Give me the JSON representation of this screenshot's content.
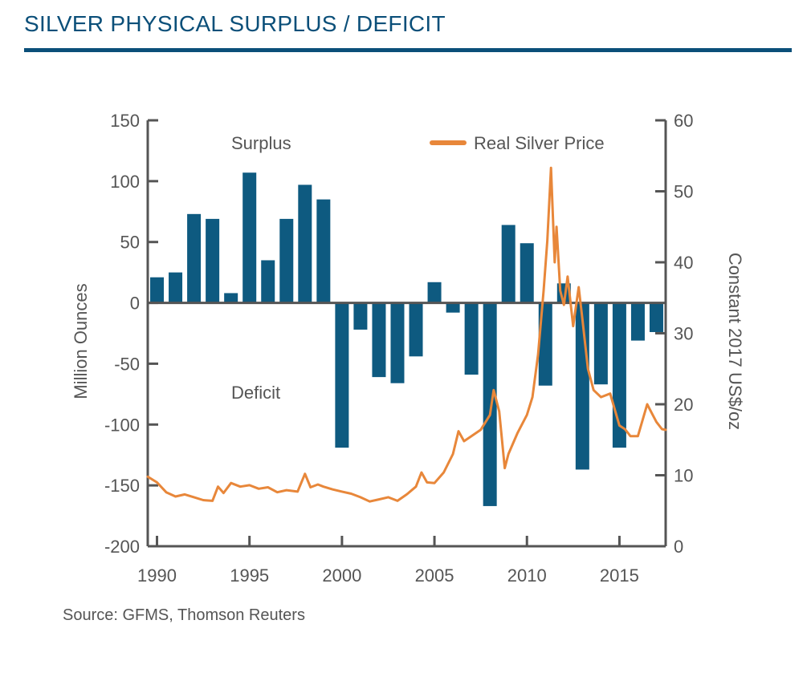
{
  "title": "SILVER PHYSICAL SURPLUS / DEFICIT",
  "source": "Source: GFMS, Thomson Reuters",
  "colors": {
    "title": "#0b4f79",
    "bars": "#0e5a80",
    "price_line": "#e8873a",
    "axis": "#555555",
    "text": "#555555"
  },
  "chart_data": {
    "type": "bar+line",
    "annotations": [
      "Surplus",
      "Deficit"
    ],
    "legend": {
      "label": "Real Silver Price",
      "placement": "top-right"
    },
    "grid": false,
    "x_axis": {
      "range": [
        1989.5,
        2017.5
      ],
      "ticks": [
        1990,
        1995,
        2000,
        2005,
        2010,
        2015
      ],
      "tick_labels": [
        "1990",
        "1995",
        "2000",
        "2005",
        "2010",
        "2015"
      ]
    },
    "y_left": {
      "label": "Million Ounces",
      "range": [
        -200,
        150
      ],
      "ticks": [
        150,
        100,
        50,
        0,
        -50,
        -100,
        -150,
        -200
      ],
      "tick_labels": [
        "150",
        "100",
        "50",
        "0",
        "-50",
        "-100",
        "-150",
        "-200"
      ]
    },
    "y_right": {
      "label": "Constant 2017 US$/oz",
      "range": [
        0,
        60
      ],
      "ticks": [
        60,
        50,
        40,
        30,
        20,
        10,
        0
      ],
      "tick_labels": [
        "60",
        "50",
        "40",
        "30",
        "20",
        "10",
        "0"
      ]
    },
    "bars": {
      "name": "Physical surplus / deficit",
      "years": [
        1990,
        1991,
        1992,
        1993,
        1994,
        1995,
        1996,
        1997,
        1998,
        1999,
        2000,
        2001,
        2002,
        2003,
        2004,
        2005,
        2006,
        2007,
        2008,
        2009,
        2010,
        2011,
        2012,
        2013,
        2014,
        2015,
        2016,
        2017
      ],
      "values": [
        21,
        25,
        73,
        69,
        8,
        107,
        35,
        69,
        97,
        85,
        -119,
        -22,
        -61,
        -66,
        -44,
        17,
        -8,
        -59,
        -167,
        64,
        49,
        -68,
        16,
        -137,
        -67,
        -119,
        -31,
        -24
      ]
    },
    "line": {
      "name": "Real Silver Price",
      "points": [
        [
          1989.5,
          9.8
        ],
        [
          1990.0,
          9.0
        ],
        [
          1990.5,
          7.6
        ],
        [
          1991.0,
          7.0
        ],
        [
          1991.5,
          7.3
        ],
        [
          1992.0,
          6.9
        ],
        [
          1992.5,
          6.5
        ],
        [
          1993.0,
          6.4
        ],
        [
          1993.3,
          8.4
        ],
        [
          1993.6,
          7.5
        ],
        [
          1994.0,
          8.9
        ],
        [
          1994.5,
          8.4
        ],
        [
          1995.0,
          8.6
        ],
        [
          1995.5,
          8.1
        ],
        [
          1996.0,
          8.3
        ],
        [
          1996.5,
          7.6
        ],
        [
          1997.0,
          7.9
        ],
        [
          1997.6,
          7.7
        ],
        [
          1998.0,
          10.2
        ],
        [
          1998.3,
          8.3
        ],
        [
          1998.7,
          8.7
        ],
        [
          1999.0,
          8.4
        ],
        [
          1999.5,
          8.0
        ],
        [
          2000.0,
          7.7
        ],
        [
          2000.5,
          7.4
        ],
        [
          2001.0,
          6.9
        ],
        [
          2001.5,
          6.3
        ],
        [
          2002.0,
          6.6
        ],
        [
          2002.5,
          6.9
        ],
        [
          2003.0,
          6.4
        ],
        [
          2003.5,
          7.3
        ],
        [
          2004.0,
          8.4
        ],
        [
          2004.3,
          10.4
        ],
        [
          2004.6,
          9.0
        ],
        [
          2005.0,
          8.9
        ],
        [
          2005.5,
          10.4
        ],
        [
          2006.0,
          13.0
        ],
        [
          2006.3,
          16.2
        ],
        [
          2006.6,
          14.8
        ],
        [
          2007.0,
          15.5
        ],
        [
          2007.5,
          16.4
        ],
        [
          2008.0,
          18.5
        ],
        [
          2008.2,
          22.0
        ],
        [
          2008.5,
          19.0
        ],
        [
          2008.8,
          11.0
        ],
        [
          2009.0,
          13.0
        ],
        [
          2009.5,
          16.0
        ],
        [
          2010.0,
          18.5
        ],
        [
          2010.3,
          21.0
        ],
        [
          2010.6,
          27.0
        ],
        [
          2010.9,
          36.0
        ],
        [
          2011.1,
          43.0
        ],
        [
          2011.3,
          53.3
        ],
        [
          2011.5,
          40.0
        ],
        [
          2011.6,
          45.0
        ],
        [
          2011.8,
          36.0
        ],
        [
          2012.0,
          34.0
        ],
        [
          2012.2,
          38.0
        ],
        [
          2012.5,
          31.0
        ],
        [
          2012.8,
          36.5
        ],
        [
          2013.0,
          32.0
        ],
        [
          2013.3,
          25.0
        ],
        [
          2013.6,
          22.0
        ],
        [
          2014.0,
          21.0
        ],
        [
          2014.5,
          21.5
        ],
        [
          2015.0,
          17.0
        ],
        [
          2015.3,
          16.5
        ],
        [
          2015.6,
          15.5
        ],
        [
          2016.0,
          15.5
        ],
        [
          2016.5,
          20.0
        ],
        [
          2016.8,
          18.5
        ],
        [
          2017.0,
          17.5
        ],
        [
          2017.3,
          16.5
        ],
        [
          2017.5,
          16.4
        ]
      ]
    }
  }
}
